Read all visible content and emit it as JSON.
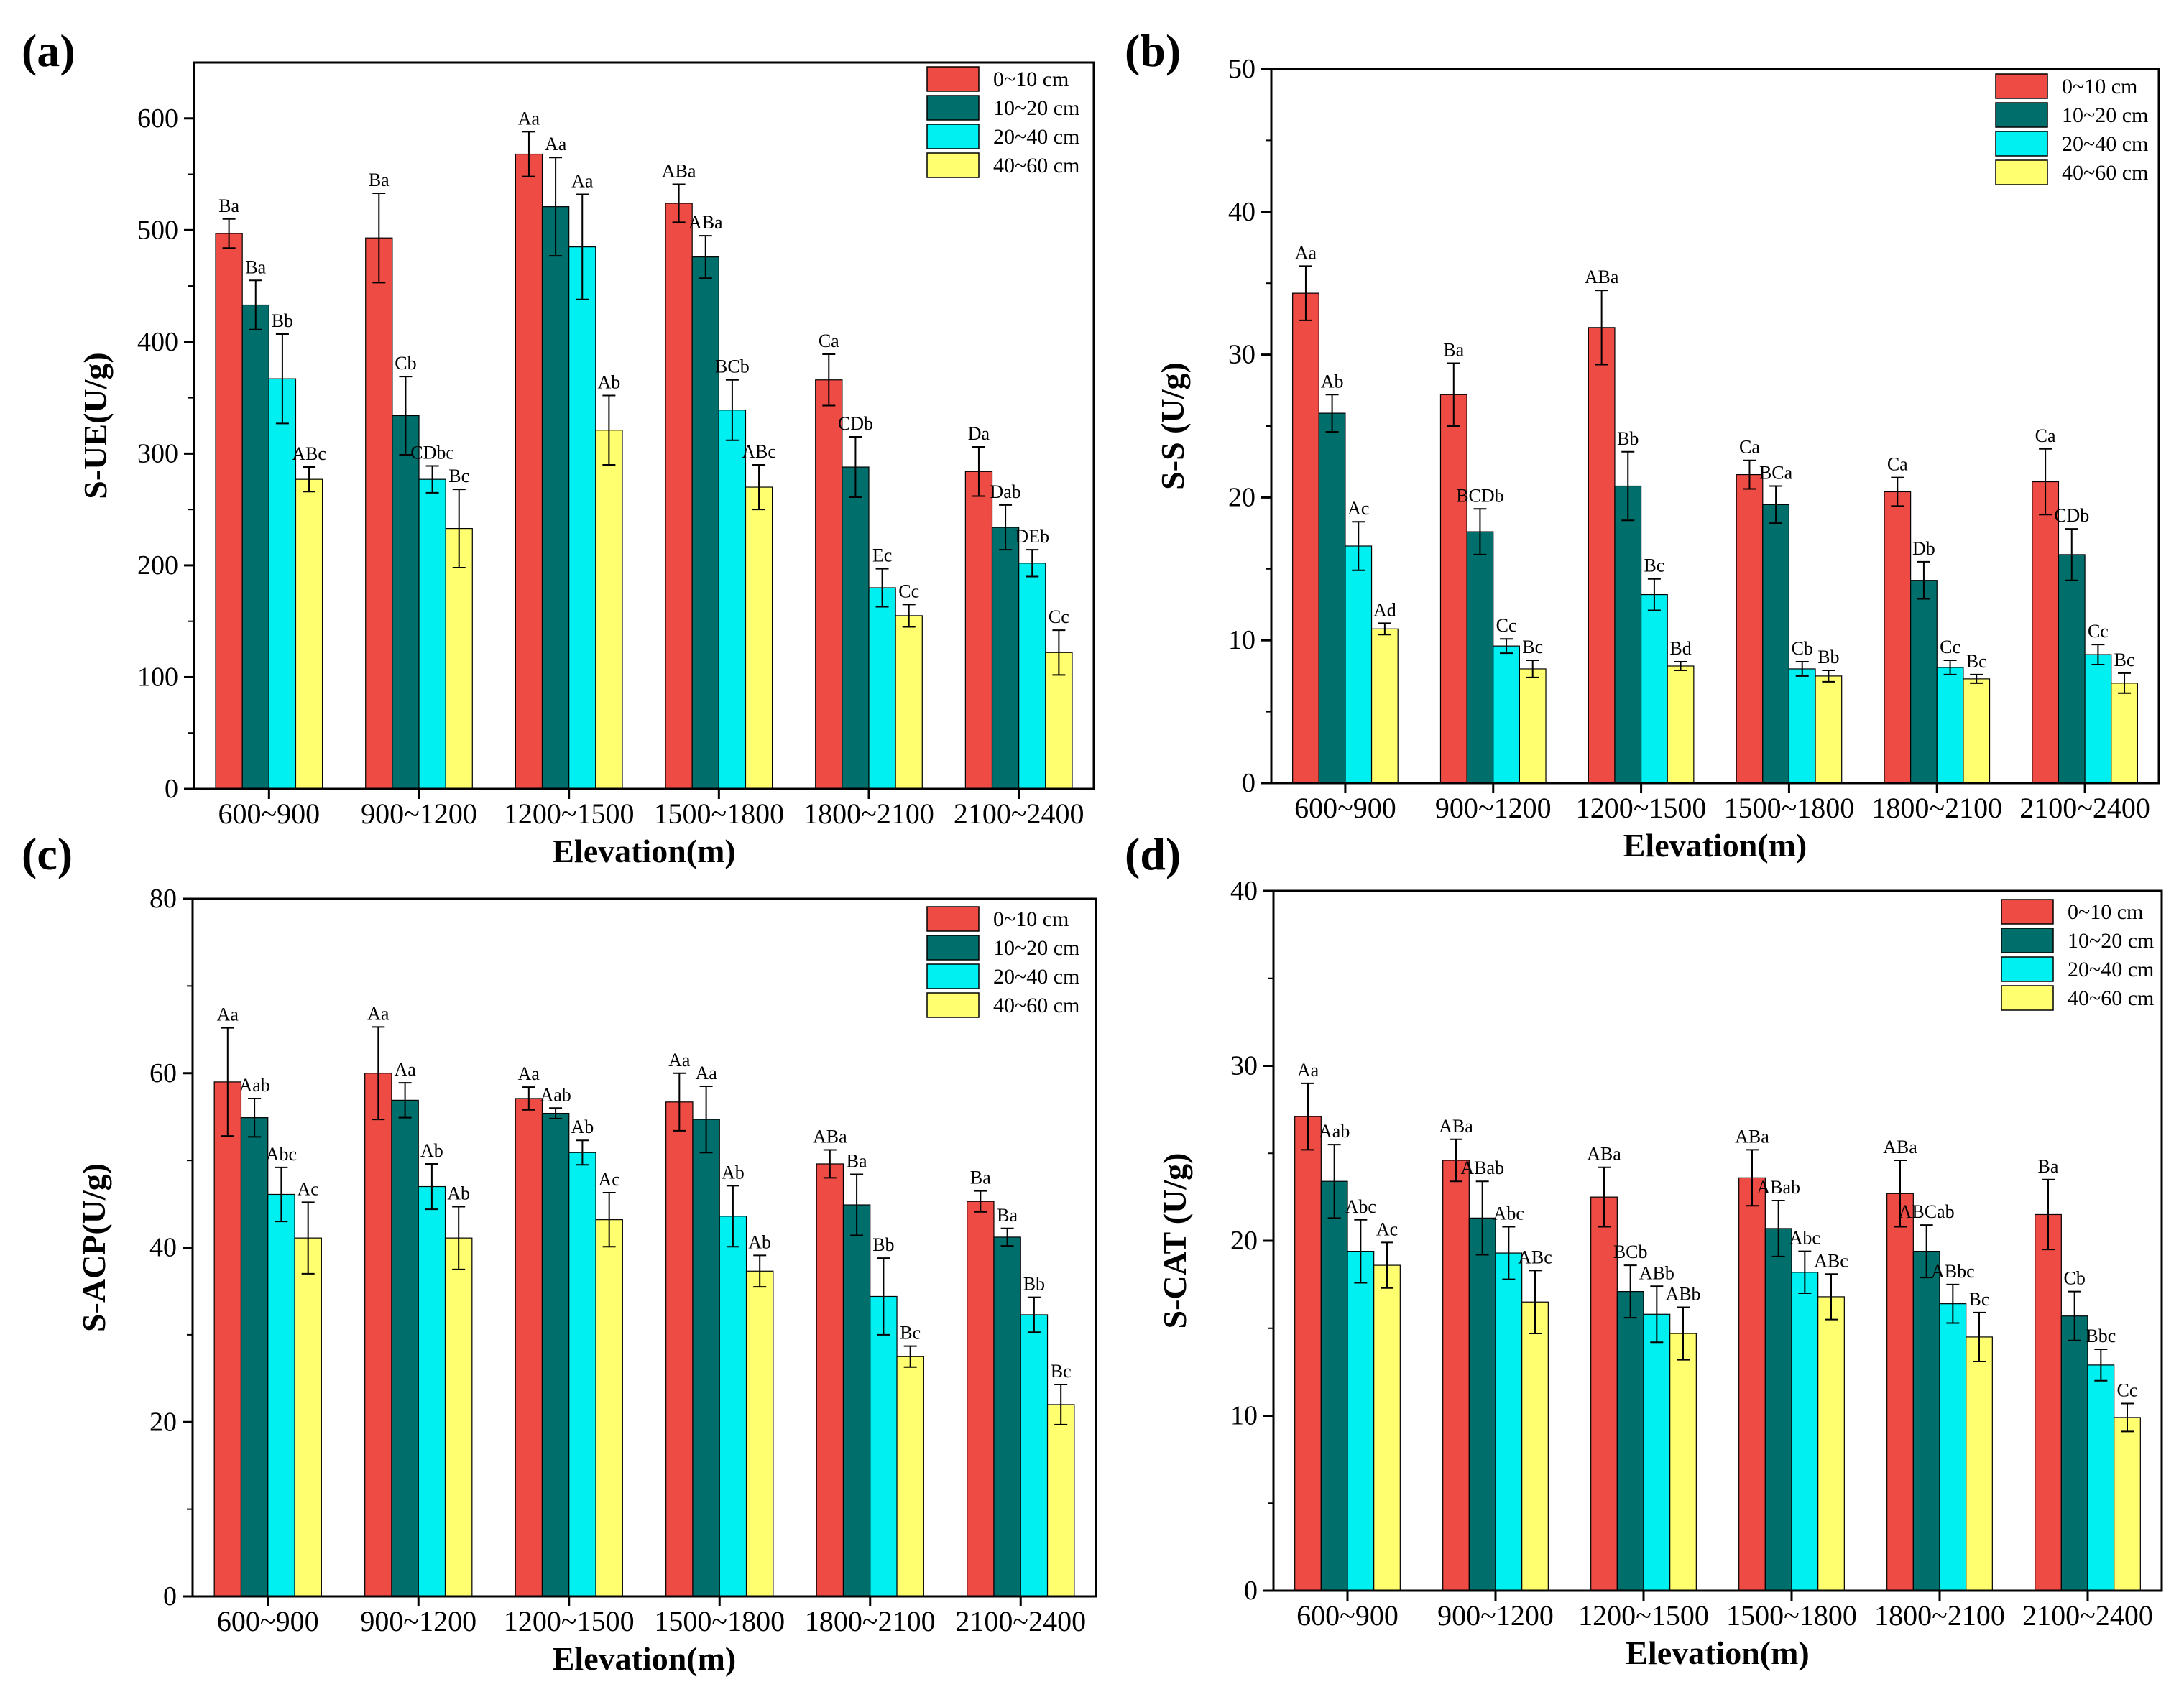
{
  "figure": {
    "legend_labels": [
      "0~10 cm",
      "10~20 cm",
      "20~40 cm",
      "40~60 cm"
    ],
    "colors": [
      "#ee4b45",
      "#006e6b",
      "#00f0f2",
      "#ffff70"
    ]
  },
  "chart_data": [
    {
      "panel": "(a)",
      "type": "bar",
      "ylabel": "S-UE(U/g)",
      "xlabel": "Elevation(m)",
      "ylim": [
        0,
        650
      ],
      "yticks": [
        0,
        100,
        200,
        300,
        400,
        500,
        600
      ],
      "categories": [
        "600~900",
        "900~1200",
        "1200~1500",
        "1500~1800",
        "1800~2100",
        "2100~2400"
      ],
      "series": [
        {
          "name": "0~10 cm",
          "values": [
            497,
            493,
            568,
            524,
            366,
            284
          ],
          "errors": [
            13,
            40,
            20,
            17,
            23,
            22
          ],
          "labels": [
            "Ba",
            "Ba",
            "Aa",
            "ABa",
            "Ca",
            "Da"
          ]
        },
        {
          "name": "10~20 cm",
          "values": [
            433,
            334,
            521,
            476,
            288,
            234
          ],
          "errors": [
            22,
            35,
            44,
            19,
            27,
            20
          ],
          "labels": [
            "Ba",
            "Cb",
            "Aa",
            "ABa",
            "CDb",
            "Dab"
          ]
        },
        {
          "name": "20~40 cm",
          "values": [
            367,
            277,
            485,
            339,
            180,
            202
          ],
          "errors": [
            40,
            12,
            47,
            27,
            17,
            12
          ],
          "labels": [
            "Bb",
            "CDbc",
            "Aa",
            "BCb",
            "Ec",
            "DEb"
          ]
        },
        {
          "name": "40~60 cm",
          "values": [
            277,
            233,
            321,
            270,
            155,
            122
          ],
          "errors": [
            11,
            35,
            31,
            20,
            10,
            20
          ],
          "labels": [
            "ABc",
            "Bc",
            "Ab",
            "ABc",
            "Cc",
            "Cc"
          ]
        }
      ]
    },
    {
      "panel": "(b)",
      "type": "bar",
      "ylabel": "S-S (U/g)",
      "xlabel": "Elevation(m)",
      "ylim": [
        0,
        50
      ],
      "yticks": [
        0,
        10,
        20,
        30,
        40,
        50
      ],
      "categories": [
        "600~900",
        "900~1200",
        "1200~1500",
        "1500~1800",
        "1800~2100",
        "2100~2400"
      ],
      "series": [
        {
          "name": "0~10 cm",
          "values": [
            34.3,
            27.2,
            31.9,
            21.6,
            20.4,
            21.1
          ],
          "errors": [
            1.9,
            2.2,
            2.6,
            1.0,
            1.0,
            2.3
          ],
          "labels": [
            "Aa",
            "Ba",
            "ABa",
            "Ca",
            "Ca",
            "Ca"
          ]
        },
        {
          "name": "10~20 cm",
          "values": [
            25.9,
            17.6,
            20.8,
            19.5,
            14.2,
            16.0
          ],
          "errors": [
            1.3,
            1.6,
            2.4,
            1.3,
            1.3,
            1.8
          ],
          "labels": [
            "Ab",
            "BCDb",
            "Bb",
            "BCa",
            "Db",
            "CDb"
          ]
        },
        {
          "name": "20~40 cm",
          "values": [
            16.6,
            9.6,
            13.2,
            8.0,
            8.1,
            9.0
          ],
          "errors": [
            1.7,
            0.5,
            1.1,
            0.5,
            0.5,
            0.7
          ],
          "labels": [
            "Ac",
            "Cc",
            "Bc",
            "Cb",
            "Cc",
            "Cc"
          ]
        },
        {
          "name": "40~60 cm",
          "values": [
            10.8,
            8.0,
            8.2,
            7.5,
            7.3,
            7.0
          ],
          "errors": [
            0.4,
            0.6,
            0.3,
            0.4,
            0.3,
            0.7
          ],
          "labels": [
            "Ad",
            "Bc",
            "Bd",
            "Bb",
            "Bc",
            "Bc"
          ]
        }
      ]
    },
    {
      "panel": "(c)",
      "type": "bar",
      "ylabel": "S-ACP(U/g)",
      "xlabel": "Elevation(m)",
      "ylim": [
        0,
        80
      ],
      "yticks": [
        0,
        20,
        40,
        60,
        80
      ],
      "categories": [
        "600~900",
        "900~1200",
        "1200~1500",
        "1500~1800",
        "1800~2100",
        "2100~2400"
      ],
      "series": [
        {
          "name": "0~10 cm",
          "values": [
            59.0,
            60.0,
            57.1,
            56.7,
            49.6,
            45.3
          ],
          "errors": [
            6.2,
            5.3,
            1.3,
            3.3,
            1.6,
            1.2
          ],
          "labels": [
            "Aa",
            "Aa",
            "Aa",
            "Aa",
            "ABa",
            "Ba"
          ]
        },
        {
          "name": "10~20 cm",
          "values": [
            54.9,
            56.9,
            55.4,
            54.7,
            44.9,
            41.2
          ],
          "errors": [
            2.2,
            2.0,
            0.6,
            3.8,
            3.5,
            1.0
          ],
          "labels": [
            "Aab",
            "Aa",
            "Aab",
            "Aa",
            "Ba",
            "Ba"
          ]
        },
        {
          "name": "20~40 cm",
          "values": [
            46.1,
            47.0,
            50.9,
            43.6,
            34.4,
            32.3
          ],
          "errors": [
            3.1,
            2.6,
            1.4,
            3.5,
            4.4,
            2.0
          ],
          "labels": [
            "Abc",
            "Ab",
            "Ab",
            "Ab",
            "Bb",
            "Bb"
          ]
        },
        {
          "name": "40~60 cm",
          "values": [
            41.1,
            41.1,
            43.2,
            37.3,
            27.5,
            22.0
          ],
          "errors": [
            4.1,
            3.6,
            3.1,
            1.8,
            1.2,
            2.3
          ],
          "labels": [
            "Ac",
            "Ab",
            "Ac",
            "Ab",
            "Bc",
            "Bc"
          ]
        }
      ]
    },
    {
      "panel": "(d)",
      "type": "bar",
      "ylabel": "S-CAT (U/g)",
      "xlabel": "Elevation(m)",
      "ylim": [
        0,
        40
      ],
      "yticks": [
        0,
        10,
        20,
        30,
        40
      ],
      "categories": [
        "600~900",
        "900~1200",
        "1200~1500",
        "1500~1800",
        "1800~2100",
        "2100~2400"
      ],
      "series": [
        {
          "name": "0~10 cm",
          "values": [
            27.1,
            24.6,
            22.5,
            23.6,
            22.7,
            21.5
          ],
          "errors": [
            1.9,
            1.2,
            1.7,
            1.6,
            1.9,
            2.0
          ],
          "labels": [
            "Aa",
            "ABa",
            "ABa",
            "ABa",
            "ABa",
            "Ba"
          ]
        },
        {
          "name": "10~20 cm",
          "values": [
            23.4,
            21.3,
            17.1,
            20.7,
            19.4,
            15.7
          ],
          "errors": [
            2.1,
            2.1,
            1.5,
            1.6,
            1.5,
            1.4
          ],
          "labels": [
            "Aab",
            "ABab",
            "BCb",
            "ABab",
            "ABCab",
            "Cb"
          ]
        },
        {
          "name": "20~40 cm",
          "values": [
            19.4,
            19.3,
            15.8,
            18.2,
            16.4,
            12.9
          ],
          "errors": [
            1.8,
            1.5,
            1.6,
            1.2,
            1.1,
            0.9
          ],
          "labels": [
            "Abc",
            "Abc",
            "ABb",
            "Abc",
            "ABbc",
            "Bbc"
          ]
        },
        {
          "name": "40~60 cm",
          "values": [
            18.6,
            16.5,
            14.7,
            16.8,
            14.5,
            9.9
          ],
          "errors": [
            1.3,
            1.8,
            1.5,
            1.3,
            1.4,
            0.8
          ],
          "labels": [
            "Ac",
            "ABc",
            "ABb",
            "ABc",
            "Bc",
            "Cc"
          ]
        }
      ]
    }
  ]
}
